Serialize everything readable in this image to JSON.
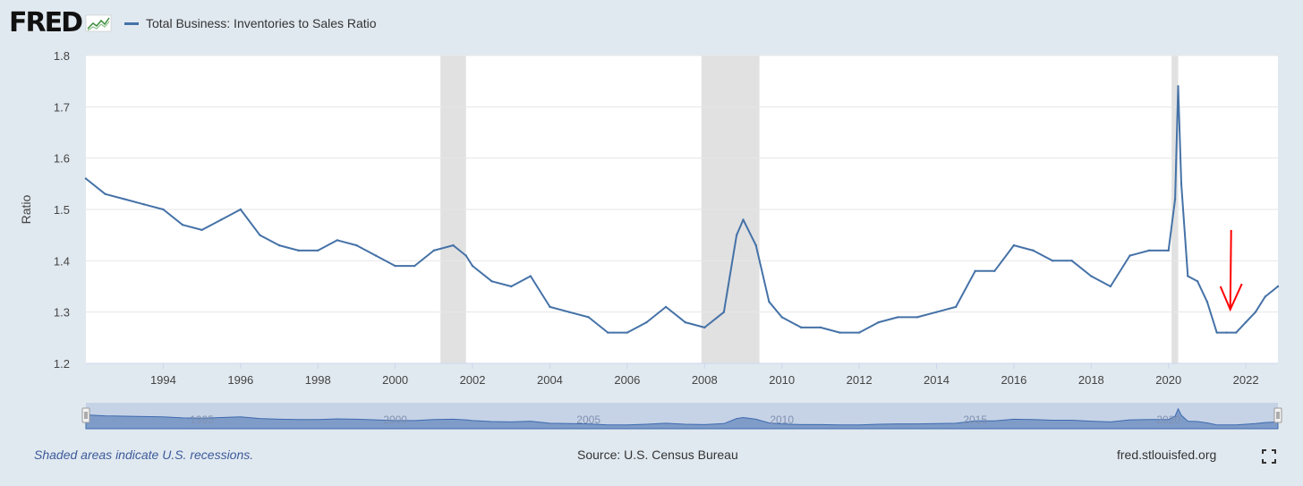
{
  "header": {
    "logo_text": "FRED",
    "series_label": "Total Business: Inventories to Sales Ratio"
  },
  "footer": {
    "recession_note": "Shaded areas indicate U.S. recessions.",
    "source": "Source: U.S. Census Bureau",
    "site": "fred.stlouisfed.org"
  },
  "icons": [
    "fred-logo-graph-icon",
    "fullscreen-icon",
    "navigator-left-handle",
    "navigator-right-handle"
  ],
  "colors": {
    "line": "#4572a7",
    "recession": "#e1e1e1",
    "background": "#e1e9f0",
    "annotation": "#ff0000"
  },
  "chart_data": {
    "type": "line",
    "title": "",
    "ylabel": "Ratio",
    "xlabel": "",
    "ylim": [
      1.2,
      1.8
    ],
    "xlim": [
      1992.0,
      2022.83
    ],
    "y_ticks": [
      "1.2",
      "1.3",
      "1.4",
      "1.5",
      "1.6",
      "1.7",
      "1.8"
    ],
    "x_ticks": [
      "1994",
      "1996",
      "1998",
      "2000",
      "2002",
      "2004",
      "2006",
      "2008",
      "2010",
      "2012",
      "2014",
      "2016",
      "2018",
      "2020",
      "2022"
    ],
    "navigator_labels": [
      "1995",
      "2000",
      "2005",
      "2010",
      "2015",
      "2020"
    ],
    "grid": true,
    "legend": "top-left",
    "recessions": [
      [
        2001.17,
        2001.83
      ],
      [
        2007.92,
        2009.42
      ],
      [
        2020.08,
        2020.25
      ]
    ],
    "annotation": "red downward arrow near 2021.6",
    "series": [
      {
        "name": "Total Business: Inventories to Sales Ratio",
        "x": [
          1992.0,
          1992.5,
          1993.0,
          1993.5,
          1994.0,
          1994.5,
          1995.0,
          1995.5,
          1996.0,
          1996.5,
          1997.0,
          1997.5,
          1998.0,
          1998.5,
          1999.0,
          1999.5,
          2000.0,
          2000.5,
          2001.0,
          2001.5,
          2001.83,
          2002.0,
          2002.5,
          2003.0,
          2003.5,
          2004.0,
          2004.5,
          2005.0,
          2005.5,
          2006.0,
          2006.5,
          2007.0,
          2007.5,
          2008.0,
          2008.5,
          2008.83,
          2009.0,
          2009.33,
          2009.67,
          2010.0,
          2010.5,
          2011.0,
          2011.5,
          2012.0,
          2012.5,
          2013.0,
          2013.5,
          2014.0,
          2014.5,
          2015.0,
          2015.5,
          2016.0,
          2016.5,
          2017.0,
          2017.5,
          2018.0,
          2018.5,
          2019.0,
          2019.5,
          2020.0,
          2020.17,
          2020.25,
          2020.33,
          2020.5,
          2020.75,
          2021.0,
          2021.25,
          2021.5,
          2021.75,
          2022.0,
          2022.25,
          2022.5,
          2022.83
        ],
        "values": [
          1.56,
          1.53,
          1.52,
          1.51,
          1.5,
          1.47,
          1.46,
          1.48,
          1.5,
          1.45,
          1.43,
          1.42,
          1.42,
          1.44,
          1.43,
          1.41,
          1.39,
          1.39,
          1.42,
          1.43,
          1.41,
          1.39,
          1.36,
          1.35,
          1.37,
          1.31,
          1.3,
          1.29,
          1.26,
          1.26,
          1.28,
          1.31,
          1.28,
          1.27,
          1.3,
          1.45,
          1.48,
          1.43,
          1.32,
          1.29,
          1.27,
          1.27,
          1.26,
          1.26,
          1.28,
          1.29,
          1.29,
          1.3,
          1.31,
          1.38,
          1.38,
          1.43,
          1.42,
          1.4,
          1.4,
          1.37,
          1.35,
          1.41,
          1.42,
          1.42,
          1.52,
          1.74,
          1.55,
          1.37,
          1.36,
          1.32,
          1.26,
          1.26,
          1.26,
          1.28,
          1.3,
          1.33,
          1.35
        ]
      }
    ]
  }
}
